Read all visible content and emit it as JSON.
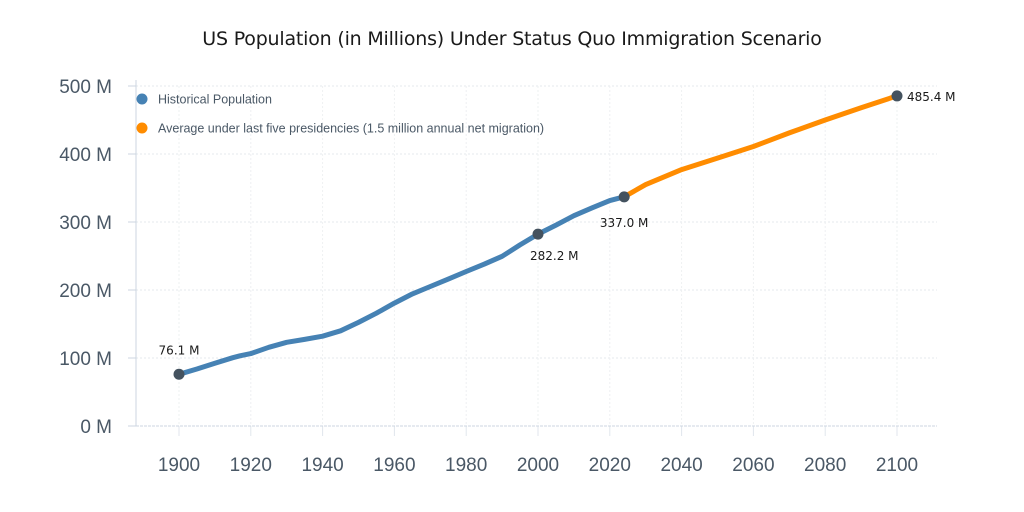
{
  "chart_data": {
    "type": "line",
    "title": "US Population (in Millions) Under Status Quo Immigration Scenario",
    "xlabel": "",
    "ylabel": "",
    "xlim": [
      1890,
      2110
    ],
    "ylim": [
      0,
      500
    ],
    "x_ticks": [
      1900,
      1920,
      1940,
      1960,
      1980,
      2000,
      2020,
      2040,
      2060,
      2080,
      2100
    ],
    "x_tick_labels": [
      "1900",
      "1920",
      "1940",
      "1960",
      "1980",
      "2000",
      "2020",
      "2040",
      "2060",
      "2080",
      "2100"
    ],
    "y_ticks": [
      0,
      100,
      200,
      300,
      400,
      500
    ],
    "y_tick_labels": [
      "0 M",
      "100 M",
      "200 M",
      "300 M",
      "400 M",
      "500 M"
    ],
    "grid": true,
    "legend_position": "top-left",
    "series": [
      {
        "name": "Historical Population",
        "color": "#4682b4",
        "x": [
          1900,
          1905,
          1910,
          1915,
          1917,
          1920,
          1925,
          1930,
          1935,
          1940,
          1945,
          1950,
          1955,
          1960,
          1965,
          1970,
          1975,
          1980,
          1985,
          1990,
          1995,
          2000,
          2005,
          2010,
          2015,
          2020,
          2024
        ],
        "y": [
          76.1,
          83.8,
          92.4,
          100.5,
          103.3,
          106.5,
          115.8,
          123.1,
          127.3,
          132.1,
          140.0,
          152.3,
          165.9,
          180.7,
          194.3,
          205.1,
          216.0,
          227.2,
          237.9,
          249.6,
          266.3,
          282.2,
          295.5,
          309.3,
          320.7,
          331.5,
          337.0
        ]
      },
      {
        "name": "Average under last five presidencies (1.5 million annual net migration)",
        "color": "#ff8c00",
        "x": [
          2024,
          2030,
          2040,
          2050,
          2060,
          2070,
          2080,
          2090,
          2100
        ],
        "y": [
          337.0,
          355.0,
          377.0,
          394.0,
          411.0,
          431.0,
          450.0,
          468.0,
          485.4
        ]
      }
    ],
    "annotations": [
      {
        "x": 1900,
        "y": 76.1,
        "label": "76.1 M"
      },
      {
        "x": 2000,
        "y": 282.2,
        "label": "282.2 M"
      },
      {
        "x": 2024,
        "y": 337.0,
        "label": "337.0 M"
      },
      {
        "x": 2100,
        "y": 485.4,
        "label": "485.4 M"
      }
    ],
    "marker_color": "#44525f"
  }
}
